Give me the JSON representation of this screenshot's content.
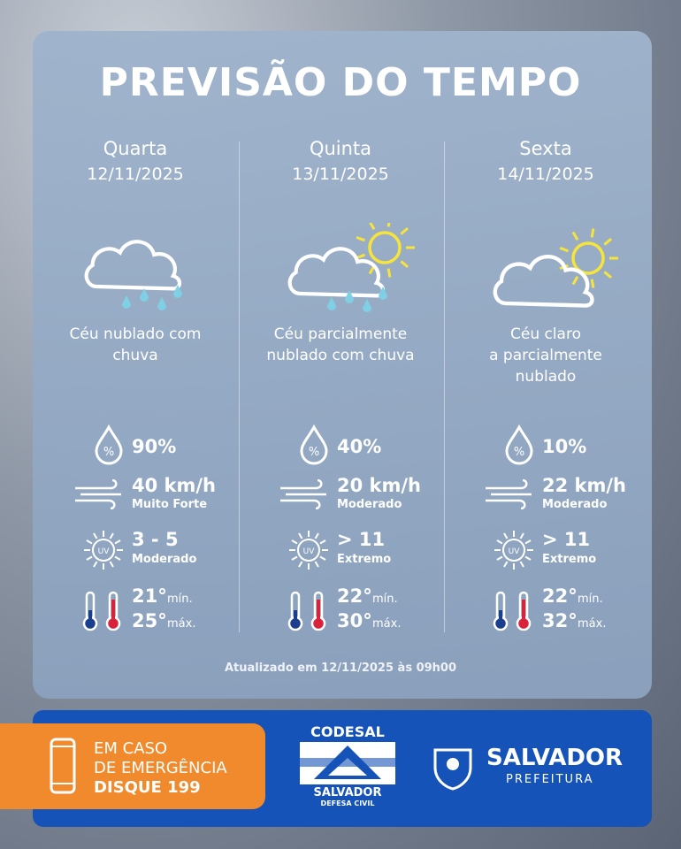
{
  "header": {
    "title": "PREVISÃO DO TEMPO"
  },
  "days": [
    {
      "weekday": "Quarta",
      "date": "12/11/2025",
      "description": [
        "Céu nublado com",
        "chuva"
      ],
      "rain": "90%",
      "wind": "40 km/h",
      "wind_level": "Muito Forte",
      "uv": "3 - 5",
      "uv_level": "Moderado",
      "temp_min": "21°",
      "min_label": "mín.",
      "temp_max": "25°",
      "max_label": "máx."
    },
    {
      "weekday": "Quinta",
      "date": "13/11/2025",
      "description": [
        "Céu parcialmente",
        "nublado com chuva"
      ],
      "rain": "40%",
      "wind": "20 km/h",
      "wind_level": "Moderado",
      "uv": "> 11",
      "uv_level": "Extremo",
      "temp_min": "22°",
      "min_label": "mín.",
      "temp_max": "30°",
      "max_label": "máx."
    },
    {
      "weekday": "Sexta",
      "date": "14/11/2025",
      "description": [
        "Céu claro",
        "a parcialmente",
        "nublado"
      ],
      "rain": "10%",
      "wind": "22 km/h",
      "wind_level": "Moderado",
      "uv": "> 11",
      "uv_level": "Extremo",
      "temp_min": "22°",
      "min_label": "mín.",
      "temp_max": "32°",
      "max_label": "máx."
    }
  ],
  "updated": "Atualizado em 12/11/2025 às 09h00",
  "footer": {
    "emergency": [
      "EM CASO",
      "DE EMERGÊNCIA",
      "DISQUE 199"
    ],
    "codesal": {
      "name": "CODESAL",
      "city": "SALVADOR",
      "unit": "DEFESA CIVIL"
    },
    "prefeitura": {
      "city": "SALVADOR",
      "name": "PREFEITURA"
    }
  }
}
